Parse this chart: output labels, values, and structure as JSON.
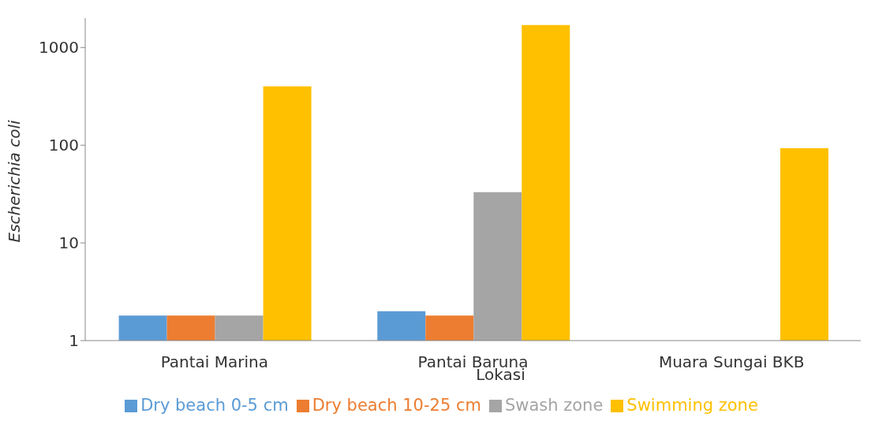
{
  "chart_data": {
    "type": "bar",
    "xlabel": "Lokasi",
    "ylabel": "Escherichia coli",
    "categories": [
      "Pantai Marina",
      "Pantai Baruna",
      "Muara Sungai BKB"
    ],
    "series": [
      {
        "name": "Dry beach 0-5 cm",
        "color": "#5b9bd5",
        "values": [
          1.8,
          2,
          null
        ]
      },
      {
        "name": "Dry beach 10-25 cm",
        "color": "#ed7d31",
        "values": [
          1.8,
          1.8,
          null
        ]
      },
      {
        "name": "Swash zone",
        "color": "#a5a5a5",
        "values": [
          1.8,
          33,
          null
        ]
      },
      {
        "name": "Swimming zone",
        "color": "#ffc000",
        "values": [
          400,
          1700,
          93
        ]
      }
    ],
    "log": true,
    "ylim": [
      1,
      2000
    ],
    "yticks": [
      1,
      10,
      100,
      1000
    ],
    "grid": false,
    "legend": "bottom"
  }
}
